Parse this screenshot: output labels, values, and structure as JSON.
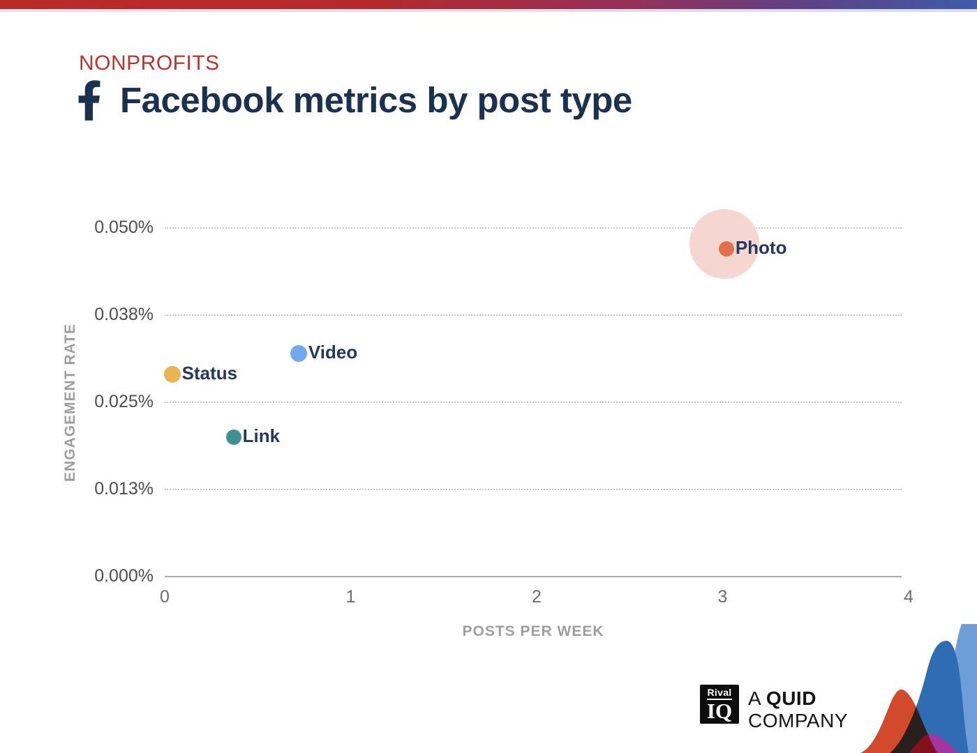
{
  "header": {
    "eyebrow": "NONPROFITS",
    "title": "Facebook metrics by post type",
    "eyebrow_color": "#b9342c",
    "title_color": "#1a3150",
    "icon": "facebook-f-icon"
  },
  "chart_data": {
    "type": "scatter",
    "title": "Facebook metrics by post type",
    "subtitle_category": "NONPROFITS",
    "xlabel": "POSTS PER WEEK",
    "ylabel": "ENGAGEMENT RATE",
    "xlim": [
      0,
      4
    ],
    "ylim_pct": [
      0.0,
      0.05
    ],
    "grid": "horizontal-dotted",
    "legend": "labels-next-to-points",
    "x_ticks": [
      {
        "value": 0,
        "label": "0"
      },
      {
        "value": 1,
        "label": "1"
      },
      {
        "value": 2,
        "label": "2"
      },
      {
        "value": 3,
        "label": "3"
      },
      {
        "value": 4,
        "label": "4"
      }
    ],
    "y_ticks": [
      {
        "value": 0.05,
        "label": "0.050%"
      },
      {
        "value": 0.0375,
        "label": "0.038%"
      },
      {
        "value": 0.025,
        "label": "0.025%"
      },
      {
        "value": 0.0125,
        "label": "0.013%"
      },
      {
        "value": 0.0,
        "label": "0.000%"
      }
    ],
    "points": [
      {
        "label": "Photo",
        "posts_per_week": 3.02,
        "engagement_rate_pct": 0.047,
        "color": "#e0714a",
        "dot_radius": 11,
        "halo_radius": 50,
        "halo_color": "#f5d6d1"
      },
      {
        "label": "Video",
        "posts_per_week": 0.72,
        "engagement_rate_pct": 0.032,
        "color": "#70a9ee",
        "dot_radius": 12
      },
      {
        "label": "Status",
        "posts_per_week": 0.04,
        "engagement_rate_pct": 0.029,
        "color": "#e9b554",
        "dot_radius": 12
      },
      {
        "label": "Link",
        "posts_per_week": 0.37,
        "engagement_rate_pct": 0.02,
        "color": "#3f9093",
        "dot_radius": 11
      }
    ],
    "point_label_color": "#24375f"
  },
  "footer": {
    "logo": {
      "top": "Rival",
      "bottom": "IQ"
    },
    "tagline": {
      "line1_prefix": "A ",
      "line1_emphasis": "QUID",
      "line2": "COMPANY"
    }
  },
  "decor": {
    "wave_colors": {
      "light_blue": "#6d9ed9",
      "dark_blue": "#2f6cb3",
      "red": "#d14a2c",
      "purple": "#a136a0"
    },
    "topbar_gradient": [
      "#bb2b26",
      "#3f5ba9"
    ]
  }
}
